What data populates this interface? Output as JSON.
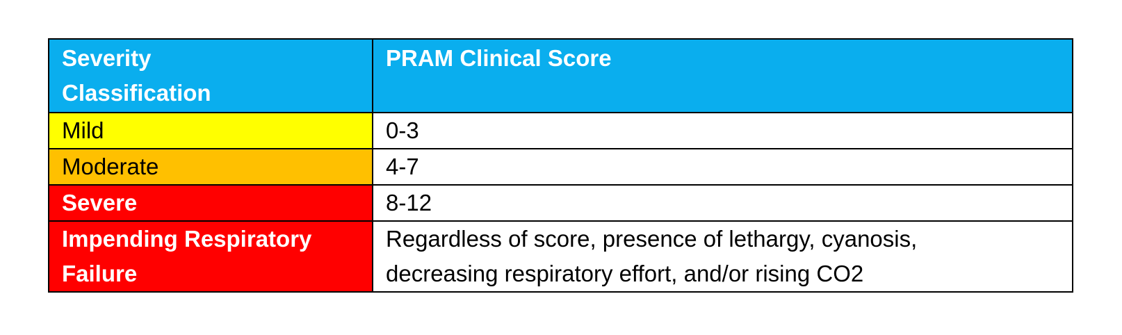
{
  "table": {
    "headers": [
      "Severity\nClassification",
      "PRAM Clinical Score"
    ],
    "header_color": "#0aaeee",
    "rows": [
      {
        "classification": "Mild",
        "score": "0-3",
        "color": "#ffff00",
        "text_color": "#000000",
        "bold": false
      },
      {
        "classification": "Moderate",
        "score": "4-7",
        "color": "#ffc000",
        "text_color": "#000000",
        "bold": false
      },
      {
        "classification": "Severe",
        "score": "8-12",
        "color": "#ff0000",
        "text_color": "#ffffff",
        "bold": true
      },
      {
        "classification": "Impending Respiratory Failure",
        "score": "Regardless of score, presence of lethargy, cyanosis, decreasing respiratory effort, and/or rising CO2",
        "color": "#ff0000",
        "text_color": "#ffffff",
        "bold": true
      }
    ]
  }
}
